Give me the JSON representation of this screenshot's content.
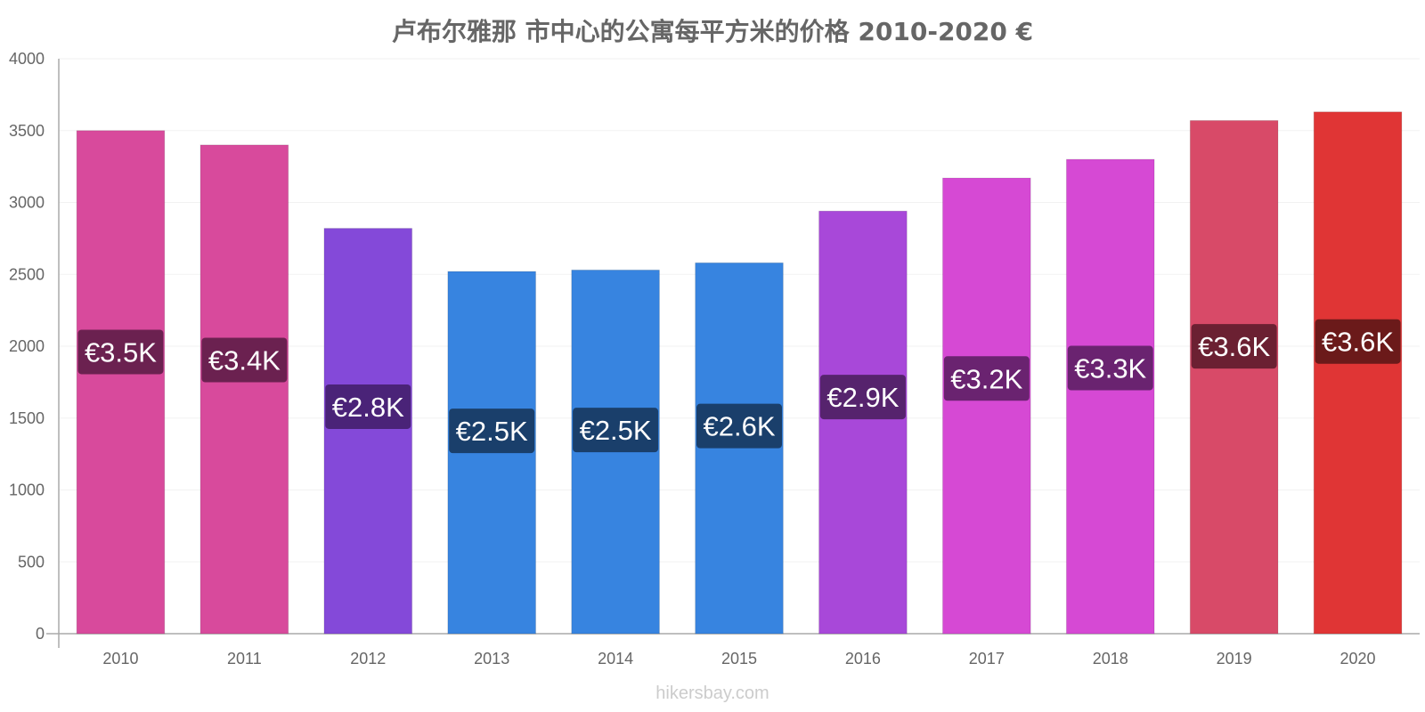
{
  "chart_data": {
    "type": "bar",
    "title": "卢布尔雅那 市中心的公寓每平方米的价格 2010-2020 €",
    "xlabel": "",
    "ylabel": "",
    "ylim": [
      0,
      4000
    ],
    "yticks": [
      0,
      500,
      1000,
      1500,
      2000,
      2500,
      3000,
      3500,
      4000
    ],
    "grid": true,
    "categories": [
      "2010",
      "2011",
      "2012",
      "2013",
      "2014",
      "2015",
      "2016",
      "2017",
      "2018",
      "2019",
      "2020"
    ],
    "values": [
      3500,
      3400,
      2820,
      2520,
      2530,
      2580,
      2940,
      3170,
      3300,
      3570,
      3630
    ],
    "data_labels": [
      "€3.5K",
      "€3.4K",
      "€2.8K",
      "€2.5K",
      "€2.5K",
      "€2.6K",
      "€2.9K",
      "€3.2K",
      "€3.3K",
      "€3.6K",
      "€3.6K"
    ],
    "bar_colors": [
      "#d84a9c",
      "#d84a9c",
      "#8449d9",
      "#3784e0",
      "#3784e0",
      "#3784e0",
      "#a848d9",
      "#d649d4",
      "#d649d4",
      "#d84a68",
      "#e03535"
    ],
    "label_colors": [
      "#6b2150",
      "#6b2150",
      "#4a2378",
      "#1a3f6b",
      "#1a3f6b",
      "#1a3f6b",
      "#56236d",
      "#6a2370",
      "#6a2370",
      "#6b2032",
      "#6b1a1a"
    ]
  },
  "watermark": "hikersbay.com"
}
